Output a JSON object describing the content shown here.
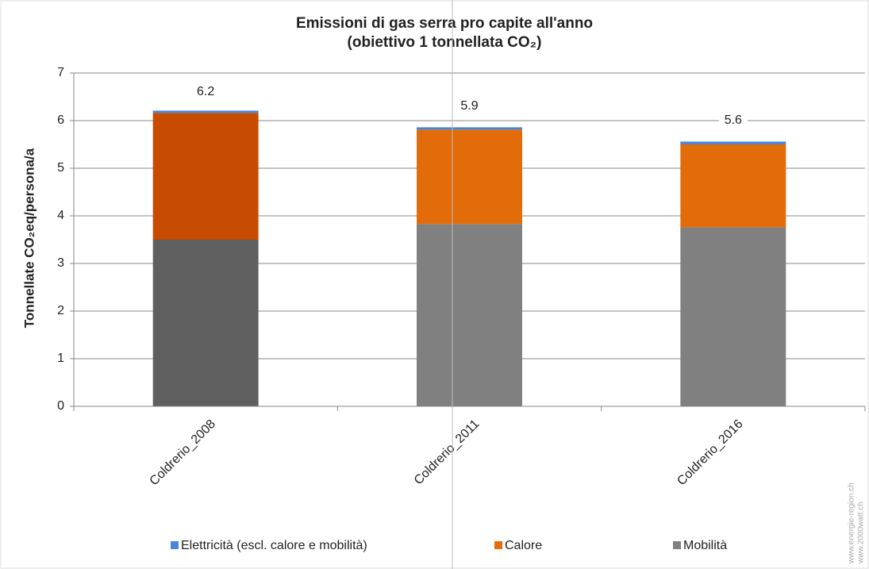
{
  "chart_data": {
    "type": "stacked-bar",
    "title": [
      "Emissioni di gas serra pro capite all'anno",
      "(obiettivo 1 tonnellata CO₂)"
    ],
    "y_label": "Tonnellate CO₂eq/persona/a",
    "categories": [
      "Coldrerio_2008",
      "Coldrerio_2011",
      "Coldrerio_2016"
    ],
    "series": [
      {
        "name": "Mobilità",
        "color": "#808080",
        "colors": [
          "#5f5f5f",
          "#808080",
          "#808080"
        ],
        "values": [
          3.5,
          3.83,
          3.76
        ]
      },
      {
        "name": "Calore",
        "color": "#e36c0a",
        "colors": [
          "#c74b00",
          "#e36c0a",
          "#e36c0a"
        ],
        "values": [
          2.66,
          1.98,
          1.74
        ]
      },
      {
        "name": "Elettricità (escl. calore e mobilità)",
        "color": "#4a86d8",
        "colors": [
          "#4a86d8",
          "#4a86d8",
          "#4a86d8"
        ],
        "values": [
          0.05,
          0.05,
          0.06
        ]
      }
    ],
    "legend_order": [
      2,
      1,
      0
    ],
    "totals": [
      6.2,
      5.9,
      5.6
    ],
    "ylim": [
      0,
      7
    ],
    "yticks": [
      0,
      1,
      2,
      3,
      4,
      5,
      6,
      7
    ],
    "grid": true,
    "watermark": [
      "www.energie-region.ch",
      "www.2000watt.ch"
    ]
  }
}
